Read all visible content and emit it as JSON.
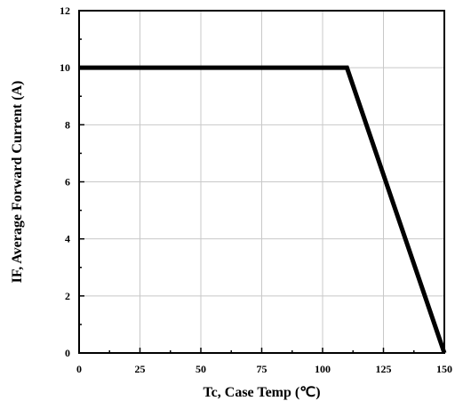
{
  "chart_data": {
    "type": "line",
    "title": "",
    "xlabel": "Tc, Case Temp (℃)",
    "ylabel": "IF, Average Forward Current (A)",
    "xlim": [
      0,
      150
    ],
    "ylim": [
      0,
      12
    ],
    "x_ticks": [
      0,
      25,
      50,
      75,
      100,
      125,
      150
    ],
    "y_ticks": [
      0,
      2,
      4,
      6,
      8,
      10,
      12
    ],
    "x_minor_step": 12.5,
    "y_minor_step": 1,
    "grid": true,
    "series": [
      {
        "x": [
          0,
          110,
          150
        ],
        "y": [
          10,
          10,
          0
        ],
        "color": "#000000"
      }
    ]
  }
}
